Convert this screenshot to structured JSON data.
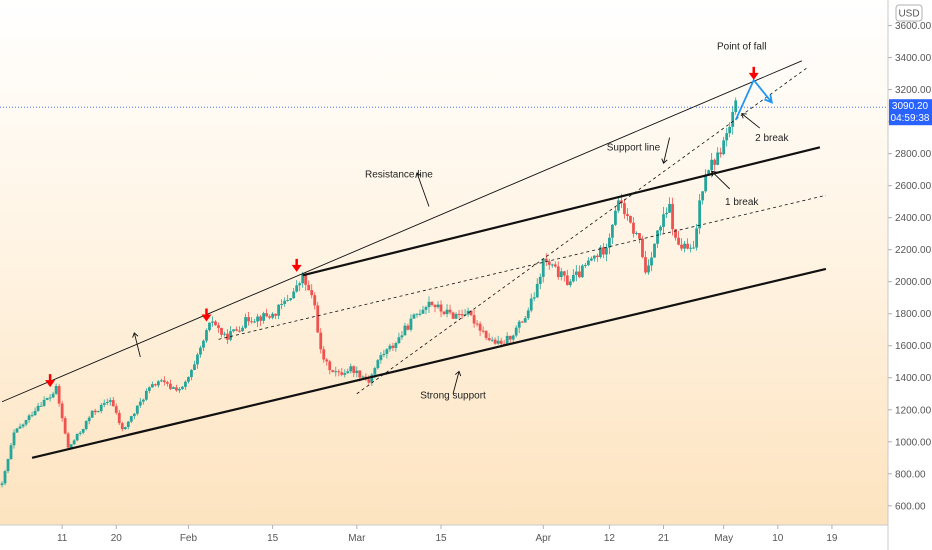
{
  "chart_data": {
    "type": "candlestick",
    "currency_label": "USD",
    "ylim": [
      480,
      3760
    ],
    "y_ticks": [
      600,
      800,
      1000,
      1200,
      1400,
      1600,
      1800,
      2000,
      2200,
      2400,
      2600,
      2800,
      3000,
      3200,
      3400,
      3600
    ],
    "y_tick_labels": [
      "600.00",
      "800.00",
      "1000.00",
      "1200.00",
      "1400.00",
      "1600.00",
      "1800.00",
      "2000.00",
      "2200.00",
      "2400.00",
      "2600.00",
      "2800.00",
      "3000.00",
      "3200.00",
      "3400.00",
      "3600.00"
    ],
    "x_ticks": [
      {
        "label": "11",
        "day": 11
      },
      {
        "label": "20",
        "day": 20
      },
      {
        "label": "Feb",
        "day": 32
      },
      {
        "label": "15",
        "day": 46
      },
      {
        "label": "Mar",
        "day": 60
      },
      {
        "label": "15",
        "day": 74
      },
      {
        "label": "Apr",
        "day": 91
      },
      {
        "label": "12",
        "day": 102
      },
      {
        "label": "21",
        "day": 111
      },
      {
        "label": "May",
        "day": 121
      },
      {
        "label": "10",
        "day": 130
      },
      {
        "label": "19",
        "day": 139
      }
    ],
    "xlim": [
      1,
      144
    ],
    "last_price": {
      "value": 3090.2,
      "label": "3090.20",
      "countdown": "04:59:38",
      "color": "#2962ff"
    },
    "colors": {
      "up": "#26a69a",
      "down": "#ef5350",
      "arrow": "#ff0000",
      "projection": "#2196f3"
    },
    "price_path": [
      [
        1,
        730
      ],
      [
        3,
        1050
      ],
      [
        5,
        1130
      ],
      [
        7,
        1230
      ],
      [
        9,
        1280
      ],
      [
        10,
        1330
      ],
      [
        12,
        960
      ],
      [
        14,
        1060
      ],
      [
        16,
        1180
      ],
      [
        18,
        1230
      ],
      [
        19,
        1270
      ],
      [
        21,
        1070
      ],
      [
        23,
        1180
      ],
      [
        25,
        1310
      ],
      [
        27,
        1380
      ],
      [
        29,
        1340
      ],
      [
        31,
        1330
      ],
      [
        33,
        1470
      ],
      [
        35,
        1680
      ],
      [
        36,
        1760
      ],
      [
        38,
        1650
      ],
      [
        40,
        1700
      ],
      [
        42,
        1770
      ],
      [
        44,
        1780
      ],
      [
        46,
        1790
      ],
      [
        48,
        1870
      ],
      [
        50,
        1960
      ],
      [
        51,
        2030
      ],
      [
        53,
        1850
      ],
      [
        54,
        1560
      ],
      [
        55,
        1480
      ],
      [
        57,
        1420
      ],
      [
        59,
        1460
      ],
      [
        61,
        1410
      ],
      [
        62,
        1380
      ],
      [
        64,
        1540
      ],
      [
        66,
        1600
      ],
      [
        68,
        1700
      ],
      [
        70,
        1800
      ],
      [
        72,
        1880
      ],
      [
        74,
        1820
      ],
      [
        76,
        1790
      ],
      [
        78,
        1810
      ],
      [
        80,
        1740
      ],
      [
        82,
        1640
      ],
      [
        84,
        1600
      ],
      [
        86,
        1680
      ],
      [
        88,
        1780
      ],
      [
        90,
        1960
      ],
      [
        91,
        2130
      ],
      [
        93,
        2070
      ],
      [
        95,
        2000
      ],
      [
        97,
        2050
      ],
      [
        99,
        2140
      ],
      [
        101,
        2200
      ],
      [
        102,
        2290
      ],
      [
        103,
        2460
      ],
      [
        104,
        2500
      ],
      [
        105,
        2380
      ],
      [
        107,
        2260
      ],
      [
        108,
        2060
      ],
      [
        110,
        2300
      ],
      [
        111,
        2390
      ],
      [
        112,
        2460
      ],
      [
        113,
        2250
      ],
      [
        114,
        2220
      ],
      [
        116,
        2190
      ],
      [
        117,
        2500
      ],
      [
        118,
        2700
      ],
      [
        120,
        2780
      ],
      [
        122,
        2960
      ],
      [
        123,
        3090
      ]
    ],
    "trendlines": [
      {
        "name": "resistance-line",
        "style": "solid",
        "width": 0.9,
        "from": [
          1,
          1250
        ],
        "to": [
          134,
          3380
        ]
      },
      {
        "name": "upper-channel-line",
        "style": "solid",
        "width": 2.2,
        "from": [
          51,
          2040
        ],
        "to": [
          137,
          2840
        ]
      },
      {
        "name": "strong-support-line",
        "style": "solid",
        "width": 2.2,
        "from": [
          6,
          900
        ],
        "to": [
          138,
          2080
        ]
      },
      {
        "name": "inner-dashed-line",
        "style": "dashed",
        "width": 0.8,
        "from": [
          37,
          1640
        ],
        "to": [
          138,
          2540
        ]
      },
      {
        "name": "support-dashed-line",
        "style": "dashed",
        "width": 0.8,
        "from": [
          60,
          1300
        ],
        "to": [
          135,
          3340
        ]
      }
    ],
    "projection": [
      [
        123,
        3010
      ],
      [
        126,
        3260
      ],
      [
        129,
        3120
      ]
    ],
    "red_arrows": [
      {
        "x": 9,
        "y": 1360
      },
      {
        "x": 35,
        "y": 1770
      },
      {
        "x": 50,
        "y": 2080
      },
      {
        "x": 126,
        "y": 3280
      }
    ],
    "annotations": [
      {
        "text": "Point of fall",
        "x": 124,
        "y": 3450
      },
      {
        "text": "Resistance line",
        "x": 67,
        "y": 2650
      },
      {
        "text": "Support line",
        "x": 106,
        "y": 2820
      },
      {
        "text": "2 break",
        "x": 129,
        "y": 2880
      },
      {
        "text": "1 break",
        "x": 124,
        "y": 2480
      },
      {
        "text": "Strong support",
        "x": 76,
        "y": 1270
      }
    ],
    "pointer_arrows": [
      {
        "from": [
          72,
          2470
        ],
        "to": [
          70,
          2680
        ]
      },
      {
        "from": [
          24,
          1530
        ],
        "to": [
          23,
          1680
        ]
      },
      {
        "from": [
          112,
          2900
        ],
        "to": [
          111,
          2740
        ]
      },
      {
        "from": [
          122,
          2580
        ],
        "to": [
          119,
          2690
        ]
      },
      {
        "from": [
          127,
          2960
        ],
        "to": [
          124,
          3050
        ]
      },
      {
        "from": [
          76,
          1300
        ],
        "to": [
          77,
          1440
        ]
      }
    ]
  }
}
